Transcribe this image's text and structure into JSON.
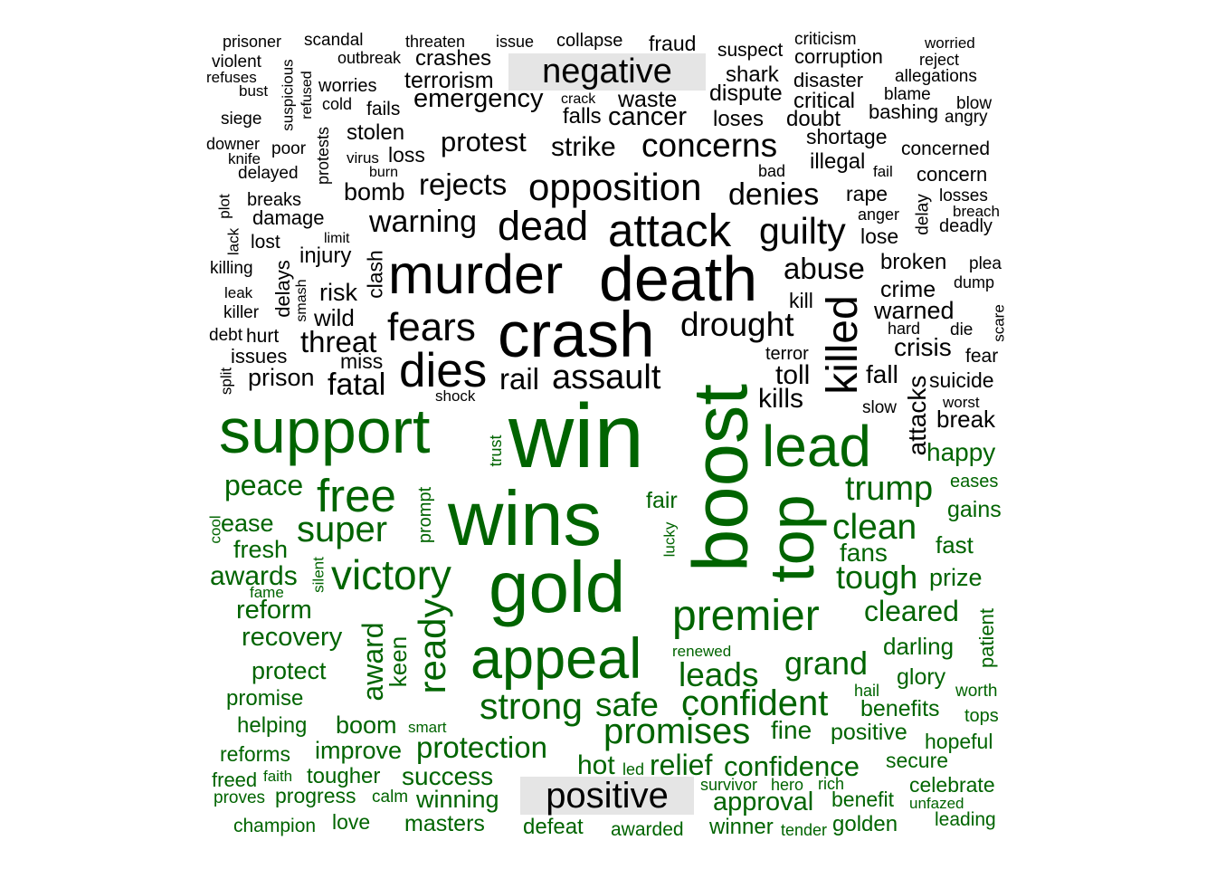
{
  "colors": {
    "negative": "#000000",
    "positive": "#006400",
    "label_bg": "#e5e5e5"
  },
  "groups": [
    {
      "label": "negative",
      "color": "#000000",
      "words": [
        "prisoner",
        "scandal",
        "threaten",
        "issue",
        "collapse",
        "fraud",
        "suspect",
        "criticism",
        "worried",
        "violent",
        "outbreak",
        "crashes",
        "corruption",
        "reject",
        "refuses",
        "worries",
        "terrorism",
        "shark",
        "disaster",
        "allegations",
        "bust",
        "suspicious",
        "refused",
        "emergency",
        "dispute",
        "blame",
        "cold",
        "crack",
        "waste",
        "critical",
        "blow",
        "siege",
        "fails",
        "falls",
        "cancer",
        "loses",
        "doubt",
        "bashing",
        "angry",
        "protests",
        "stolen",
        "protest",
        "strike",
        "concerns",
        "shortage",
        "downer",
        "poor",
        "virus",
        "loss",
        "concerned",
        "knife",
        "illegal",
        "delayed",
        "burn",
        "bad",
        "fail",
        "concern",
        "opposition",
        "rejects",
        "denies",
        "rape",
        "delay",
        "losses",
        "bomb",
        "breaks",
        "plot",
        "anger",
        "breach",
        "damage",
        "dead",
        "attack",
        "guilty",
        "deadly",
        "lack",
        "warning",
        "lose",
        "lost",
        "limit",
        "death",
        "murder",
        "injury",
        "clash",
        "abuse",
        "broken",
        "plea",
        "killing",
        "delays",
        "smash",
        "dump",
        "leak",
        "risk",
        "killed",
        "crime",
        "kill",
        "killer",
        "wild",
        "crash",
        "warned",
        "fears",
        "drought",
        "scare",
        "hard",
        "die",
        "debt",
        "hurt",
        "threat",
        "crisis",
        "issues",
        "terror",
        "fear",
        "miss",
        "dies",
        "prison",
        "rail",
        "assault",
        "toll",
        "fall",
        "suicide",
        "split",
        "fatal",
        "kills",
        "shock",
        "attacks",
        "worst",
        "slow",
        "break"
      ]
    },
    {
      "label": "positive",
      "color": "#006400",
      "words": [
        "support",
        "win",
        "boost",
        "lead",
        "happy",
        "trust",
        "eases",
        "peace",
        "free",
        "trump",
        "prompt",
        "fair",
        "gains",
        "cool",
        "ease",
        "super",
        "clean",
        "fresh",
        "lucky",
        "fast",
        "wins",
        "fans",
        "top",
        "silent",
        "awards",
        "victory",
        "tough",
        "prize",
        "gold",
        "fame",
        "reform",
        "premier",
        "cleared",
        "patient",
        "recovery",
        "ready",
        "award",
        "keen",
        "darling",
        "appeal",
        "renewed",
        "protect",
        "grand",
        "leads",
        "glory",
        "hail",
        "worth",
        "promise",
        "strong",
        "safe",
        "confident",
        "benefits",
        "helping",
        "boom",
        "smart",
        "tops",
        "fine",
        "positive",
        "promises",
        "reforms",
        "improve",
        "protection",
        "hopeful",
        "secure",
        "hot",
        "relief",
        "confidence",
        "led",
        "freed",
        "faith",
        "tougher",
        "success",
        "survivor",
        "hero",
        "rich",
        "celebrate",
        "proves",
        "progress",
        "calm",
        "winning",
        "approval",
        "benefit",
        "unfazed",
        "champion",
        "love",
        "masters",
        "defeat",
        "awarded",
        "winner",
        "tender",
        "golden",
        "leading"
      ]
    }
  ]
}
